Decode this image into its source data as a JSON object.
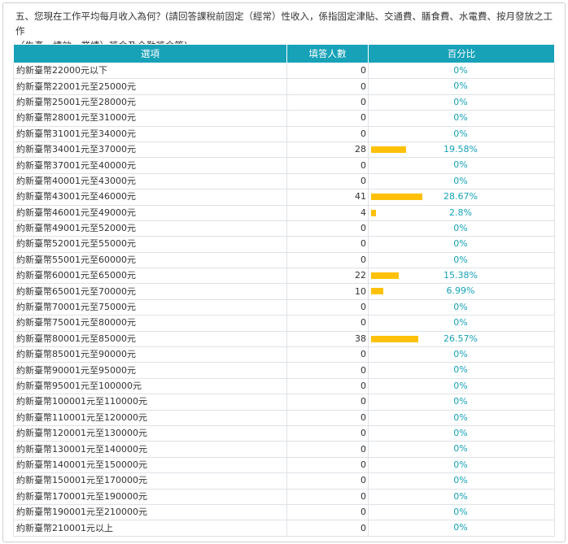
{
  "question": {
    "line1": "五、您現在工作平均每月收入為何？(請回答課稅前固定（經常）性收入，係指固定津貼、交通費、膳食費、水電費、按月發放之工作",
    "line2": "（生產、績效、業績）獎金及全勤獎金等)"
  },
  "table": {
    "headers": [
      "選項",
      "填答人數",
      "百分比"
    ],
    "bar_color": "#ffc107",
    "header_color": "#17a2b8",
    "rows": [
      {
        "option": "約新臺幣22000元以下",
        "count": "0",
        "percent": "0%",
        "share": 0
      },
      {
        "option": "約新臺幣22001元至25000元",
        "count": "0",
        "percent": "0%",
        "share": 0
      },
      {
        "option": "約新臺幣25001元至28000元",
        "count": "0",
        "percent": "0%",
        "share": 0
      },
      {
        "option": "約新臺幣28001元至31000元",
        "count": "0",
        "percent": "0%",
        "share": 0
      },
      {
        "option": "約新臺幣31001元至34000元",
        "count": "0",
        "percent": "0%",
        "share": 0
      },
      {
        "option": "約新臺幣34001元至37000元",
        "count": "28",
        "percent": "19.58%",
        "share": 19.58
      },
      {
        "option": "約新臺幣37001元至40000元",
        "count": "0",
        "percent": "0%",
        "share": 0
      },
      {
        "option": "約新臺幣40001元至43000元",
        "count": "0",
        "percent": "0%",
        "share": 0
      },
      {
        "option": "約新臺幣43001元至46000元",
        "count": "41",
        "percent": "28.67%",
        "share": 28.67
      },
      {
        "option": "約新臺幣46001元至49000元",
        "count": "4",
        "percent": "2.8%",
        "share": 2.8
      },
      {
        "option": "約新臺幣49001元至52000元",
        "count": "0",
        "percent": "0%",
        "share": 0
      },
      {
        "option": "約新臺幣52001元至55000元",
        "count": "0",
        "percent": "0%",
        "share": 0
      },
      {
        "option": "約新臺幣55001元至60000元",
        "count": "0",
        "percent": "0%",
        "share": 0
      },
      {
        "option": "約新臺幣60001元至65000元",
        "count": "22",
        "percent": "15.38%",
        "share": 15.38
      },
      {
        "option": "約新臺幣65001元至70000元",
        "count": "10",
        "percent": "6.99%",
        "share": 6.99
      },
      {
        "option": "約新臺幣70001元至75000元",
        "count": "0",
        "percent": "0%",
        "share": 0
      },
      {
        "option": "約新臺幣75001元至80000元",
        "count": "0",
        "percent": "0%",
        "share": 0
      },
      {
        "option": "約新臺幣80001元至85000元",
        "count": "38",
        "percent": "26.57%",
        "share": 26.57
      },
      {
        "option": "約新臺幣85001元至90000元",
        "count": "0",
        "percent": "0%",
        "share": 0
      },
      {
        "option": "約新臺幣90001元至95000元",
        "count": "0",
        "percent": "0%",
        "share": 0
      },
      {
        "option": "約新臺幣95001元至100000元",
        "count": "0",
        "percent": "0%",
        "share": 0
      },
      {
        "option": "約新臺幣100001元至110000元",
        "count": "0",
        "percent": "0%",
        "share": 0
      },
      {
        "option": "約新臺幣110001元至120000元",
        "count": "0",
        "percent": "0%",
        "share": 0
      },
      {
        "option": "約新臺幣120001元至130000元",
        "count": "0",
        "percent": "0%",
        "share": 0
      },
      {
        "option": "約新臺幣130001元至140000元",
        "count": "0",
        "percent": "0%",
        "share": 0
      },
      {
        "option": "約新臺幣140001元至150000元",
        "count": "0",
        "percent": "0%",
        "share": 0
      },
      {
        "option": "約新臺幣150001元至170000元",
        "count": "0",
        "percent": "0%",
        "share": 0
      },
      {
        "option": "約新臺幣170001元至190000元",
        "count": "0",
        "percent": "0%",
        "share": 0
      },
      {
        "option": "約新臺幣190001元至210000元",
        "count": "0",
        "percent": "0%",
        "share": 0
      },
      {
        "option": "約新臺幣210001元以上",
        "count": "0",
        "percent": "0%",
        "share": 0
      }
    ]
  }
}
